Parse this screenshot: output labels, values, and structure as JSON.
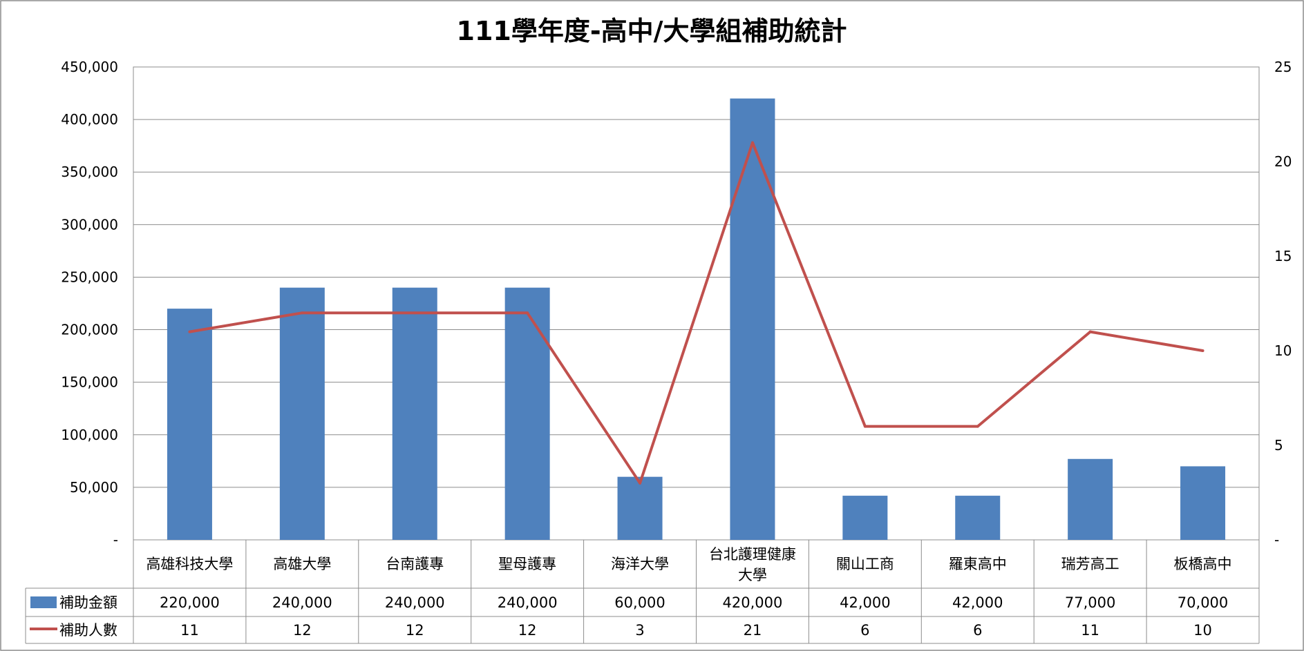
{
  "chart_data": {
    "type": "bar",
    "title": "111學年度-高中/大學組補助統計",
    "categories": [
      {
        "line1": "高雄科技大學",
        "line2": ""
      },
      {
        "line1": "高雄大學",
        "line2": ""
      },
      {
        "line1": "台南護專",
        "line2": ""
      },
      {
        "line1": "聖母護專",
        "line2": ""
      },
      {
        "line1": "海洋大學",
        "line2": ""
      },
      {
        "line1": "台北護理健康",
        "line2": "大學"
      },
      {
        "line1": "關山工商",
        "line2": ""
      },
      {
        "line1": "羅東高中",
        "line2": ""
      },
      {
        "line1": "瑞芳高工",
        "line2": ""
      },
      {
        "line1": "板橋高中",
        "line2": ""
      }
    ],
    "series": [
      {
        "name": "補助金額",
        "type": "bar",
        "axis": "left",
        "color": "#4f81bd",
        "values": [
          220000,
          240000,
          240000,
          240000,
          60000,
          420000,
          42000,
          42000,
          77000,
          70000
        ],
        "labels": [
          "220,000",
          "240,000",
          "240,000",
          "240,000",
          "60,000",
          "420,000",
          "42,000",
          "42,000",
          "77,000",
          "70,000"
        ]
      },
      {
        "name": "補助人數",
        "type": "line",
        "axis": "right",
        "color": "#c0504d",
        "values": [
          11,
          12,
          12,
          12,
          3,
          21,
          6,
          6,
          11,
          10
        ],
        "labels": [
          "11",
          "12",
          "12",
          "12",
          "3",
          "21",
          "6",
          "6",
          "11",
          "10"
        ]
      }
    ],
    "left_axis": {
      "ylim": [
        0,
        450000
      ],
      "ticks": [
        0,
        50000,
        100000,
        150000,
        200000,
        250000,
        300000,
        350000,
        400000,
        450000
      ],
      "tick_labels": [
        "-",
        "50,000",
        "100,000",
        "150,000",
        "200,000",
        "250,000",
        "300,000",
        "350,000",
        "400,000",
        "450,000"
      ]
    },
    "right_axis": {
      "ylim": [
        0,
        25
      ],
      "ticks": [
        0,
        5,
        10,
        15,
        20,
        25
      ],
      "tick_labels": [
        "-",
        "5",
        "10",
        "15",
        "20",
        "25"
      ]
    },
    "grid": true,
    "legend": "data-table"
  }
}
